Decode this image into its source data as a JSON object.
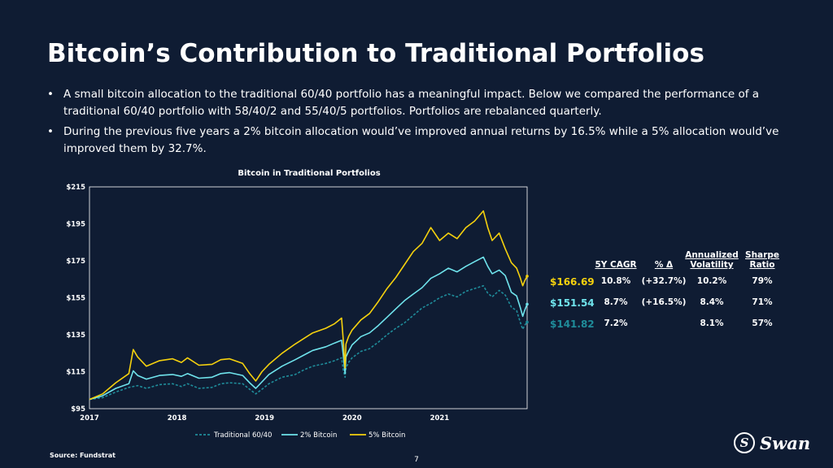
{
  "slide": {
    "title": "Bitcoin’s Contribution to Traditional Portfolios",
    "bullets": [
      "A small bitcoin allocation to the traditional 60/40 portfolio has a meaningful impact. Below we compared the performance of a traditional 60/40 portfolio with 58/40/2 and 55/40/5 portfolios. Portfolios are rebalanced quarterly.",
      "During the previous five years a 2% bitcoin allocation would’ve improved annual returns by 16.5% while a 5% allocation would’ve improved them by 32.7%."
    ],
    "source": "Source: Fundstrat",
    "page_number": "7",
    "logo_text": "Swan",
    "logo_mark": "S"
  },
  "colors": {
    "background": "#0f1c33",
    "traditional": "#1f8c9a",
    "btc2": "#6fe3ec",
    "btc5": "#f5d10e"
  },
  "stats_table": {
    "headers": [
      "5Y CAGR",
      "% Δ",
      "Annualized Volatility",
      "Sharpe Ratio"
    ],
    "header_lines": [
      [
        "5Y CAGR"
      ],
      [
        "% Δ"
      ],
      [
        "Annualized",
        "Volatility"
      ],
      [
        "Sharpe",
        "Ratio"
      ]
    ],
    "rows": [
      {
        "end_value": "$166.69",
        "cagr": "10.8%",
        "delta": "(+32.7%)",
        "volatility": "10.2%",
        "sharpe": "79%",
        "color": "#f5d10e"
      },
      {
        "end_value": "$151.54",
        "cagr": "8.7%",
        "delta": "(+16.5%)",
        "volatility": "8.4%",
        "sharpe": "71%",
        "color": "#6fe3ec"
      },
      {
        "end_value": "$141.82",
        "cagr": "7.2%",
        "delta": "",
        "volatility": "8.1%",
        "sharpe": "57%",
        "color": "#1f8c9a"
      }
    ]
  },
  "chart_data": {
    "type": "line",
    "title": "Bitcoin in Traditional Portfolios",
    "xlabel": "",
    "ylabel": "",
    "x_ticks": [
      "2017",
      "2018",
      "2019",
      "2020",
      "2021"
    ],
    "x_tick_values": [
      2017.0,
      2018.0,
      2019.0,
      2020.0,
      2021.0
    ],
    "xlim": [
      2017.0,
      2022.0
    ],
    "y_ticks": [
      "$95",
      "$115",
      "$135",
      "$155",
      "$175",
      "$195",
      "$215"
    ],
    "ylim": [
      95,
      215
    ],
    "grid": false,
    "legend_position": "bottom",
    "series": [
      {
        "name": "Traditional 60/40",
        "color": "#1f8c9a",
        "style": "dashed",
        "end_label": "$141.82",
        "x": [
          2017.0,
          2017.15,
          2017.3,
          2017.45,
          2017.55,
          2017.65,
          2017.8,
          2017.95,
          2018.05,
          2018.12,
          2018.25,
          2018.4,
          2018.5,
          2018.6,
          2018.75,
          2018.83,
          2018.9,
          2018.97,
          2019.05,
          2019.2,
          2019.35,
          2019.45,
          2019.55,
          2019.7,
          2019.8,
          2019.88,
          2019.9,
          2019.92,
          2019.93,
          2019.96,
          2020.0,
          2020.1,
          2020.2,
          2020.3,
          2020.4,
          2020.5,
          2020.6,
          2020.7,
          2020.8,
          2020.9,
          2021.0,
          2021.1,
          2021.2,
          2021.3,
          2021.4,
          2021.5,
          2021.55,
          2021.6,
          2021.68,
          2021.75,
          2021.82,
          2021.88,
          2021.92,
          2021.95,
          2021.97,
          2022.0
        ],
        "values": [
          100.0,
          101.0,
          104.0,
          106.5,
          107.5,
          106.0,
          108.0,
          108.5,
          107.0,
          108.5,
          106.0,
          106.5,
          108.5,
          109.0,
          108.5,
          105.5,
          103.0,
          105.5,
          108.5,
          112.0,
          113.5,
          116.0,
          118.0,
          119.5,
          121.0,
          122.5,
          116.0,
          112.0,
          117.0,
          120.0,
          122.5,
          126.0,
          127.5,
          131.0,
          135.0,
          138.5,
          141.5,
          145.5,
          149.5,
          152.0,
          155.0,
          157.0,
          155.5,
          158.5,
          160.0,
          161.5,
          157.5,
          155.5,
          159.0,
          156.5,
          150.0,
          148.0,
          142.0,
          138.0,
          140.0,
          141.82
        ]
      },
      {
        "name": "2% Bitcoin",
        "color": "#6fe3ec",
        "style": "solid",
        "end_label": "$151.54",
        "x": [
          2017.0,
          2017.15,
          2017.3,
          2017.45,
          2017.5,
          2017.55,
          2017.65,
          2017.8,
          2017.95,
          2018.05,
          2018.12,
          2018.25,
          2018.4,
          2018.5,
          2018.6,
          2018.75,
          2018.83,
          2018.9,
          2018.97,
          2019.05,
          2019.2,
          2019.35,
          2019.45,
          2019.55,
          2019.7,
          2019.8,
          2019.88,
          2019.9,
          2019.92,
          2019.93,
          2019.96,
          2020.0,
          2020.1,
          2020.2,
          2020.3,
          2020.4,
          2020.5,
          2020.6,
          2020.7,
          2020.8,
          2020.9,
          2021.0,
          2021.1,
          2021.2,
          2021.3,
          2021.4,
          2021.5,
          2021.55,
          2021.6,
          2021.68,
          2021.75,
          2021.82,
          2021.88,
          2021.92,
          2021.95,
          2021.97,
          2022.0
        ],
        "values": [
          100.0,
          102.0,
          106.0,
          108.5,
          115.5,
          113.0,
          111.0,
          113.0,
          113.5,
          112.5,
          114.0,
          111.5,
          112.0,
          114.0,
          114.5,
          113.0,
          109.0,
          106.0,
          109.5,
          113.5,
          118.0,
          121.5,
          124.0,
          126.5,
          128.5,
          130.5,
          132.0,
          124.0,
          114.0,
          123.0,
          126.0,
          129.5,
          134.0,
          136.0,
          140.0,
          144.5,
          149.0,
          153.5,
          157.0,
          160.5,
          165.5,
          168.0,
          171.0,
          169.0,
          172.0,
          174.5,
          177.0,
          172.0,
          168.0,
          170.0,
          167.0,
          158.0,
          156.0,
          150.0,
          145.0,
          148.0,
          151.54
        ]
      },
      {
        "name": "5% Bitcoin",
        "color": "#f5d10e",
        "style": "solid",
        "end_label": "$166.69",
        "x": [
          2017.0,
          2017.15,
          2017.3,
          2017.45,
          2017.5,
          2017.55,
          2017.65,
          2017.8,
          2017.95,
          2018.05,
          2018.12,
          2018.25,
          2018.4,
          2018.5,
          2018.6,
          2018.75,
          2018.83,
          2018.9,
          2018.97,
          2019.05,
          2019.2,
          2019.35,
          2019.45,
          2019.55,
          2019.7,
          2019.8,
          2019.88,
          2019.9,
          2019.92,
          2019.93,
          2019.96,
          2020.0,
          2020.1,
          2020.2,
          2020.3,
          2020.4,
          2020.5,
          2020.6,
          2020.7,
          2020.8,
          2020.9,
          2021.0,
          2021.1,
          2021.2,
          2021.3,
          2021.4,
          2021.5,
          2021.55,
          2021.6,
          2021.68,
          2021.75,
          2021.82,
          2021.88,
          2021.92,
          2021.95,
          2021.97,
          2022.0
        ],
        "values": [
          100.0,
          103.0,
          109.0,
          114.0,
          127.0,
          123.0,
          118.0,
          121.0,
          122.0,
          120.0,
          122.5,
          118.5,
          119.0,
          121.5,
          122.0,
          119.5,
          114.0,
          110.0,
          115.0,
          119.0,
          125.0,
          130.0,
          133.0,
          136.0,
          138.5,
          141.0,
          144.0,
          132.0,
          117.0,
          130.0,
          134.0,
          137.5,
          143.0,
          146.5,
          153.0,
          160.0,
          166.0,
          173.0,
          180.0,
          184.5,
          193.0,
          186.0,
          190.0,
          187.0,
          193.0,
          196.5,
          202.0,
          193.0,
          186.0,
          190.0,
          181.5,
          174.0,
          171.0,
          166.0,
          161.5,
          164.0,
          166.69
        ]
      }
    ]
  }
}
